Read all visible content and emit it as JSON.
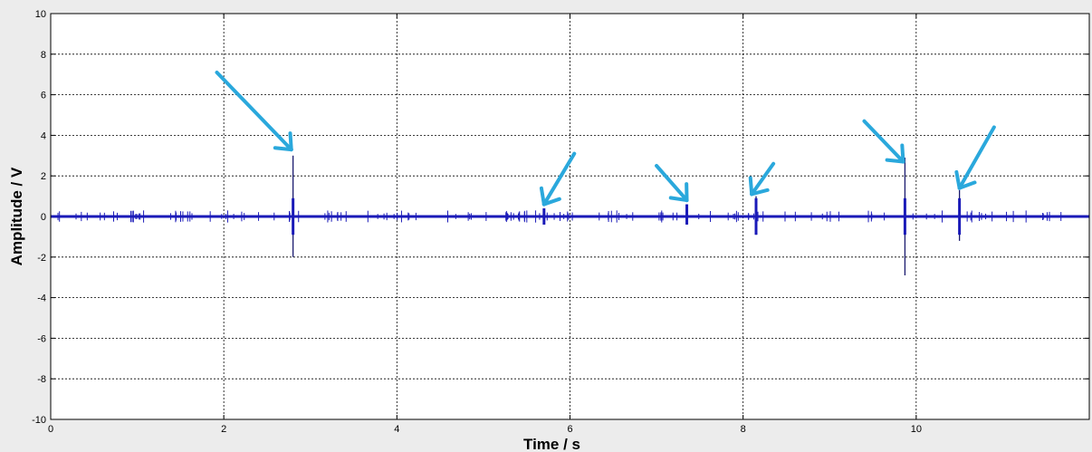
{
  "chart_data": {
    "type": "line",
    "title": "",
    "xlabel": "Time / s",
    "ylabel": "Amplitude / V",
    "xlim": [
      0,
      12
    ],
    "ylim": [
      -10,
      10
    ],
    "xticks": [
      0,
      2,
      4,
      6,
      8,
      10
    ],
    "yticks": [
      -10,
      -8,
      -6,
      -4,
      -2,
      0,
      2,
      4,
      6,
      8,
      10
    ],
    "grid": true,
    "colors": {
      "signal": "#1a1ab8",
      "arrow": "#2aa8dc",
      "grid": "#000000",
      "plot_bg": "#ffffff",
      "figure_bg": "#ececec"
    },
    "baseline": 0,
    "spikes": [
      {
        "x": 2.8,
        "max": 3.0,
        "min": -2.0
      },
      {
        "x": 5.7,
        "max": 0.4,
        "min": -0.4
      },
      {
        "x": 7.35,
        "max": 0.6,
        "min": -0.4
      },
      {
        "x": 8.15,
        "max": 1.0,
        "min": -0.9
      },
      {
        "x": 9.87,
        "max": 2.9,
        "min": -2.9
      },
      {
        "x": 10.5,
        "max": 1.3,
        "min": -1.2
      }
    ],
    "annotations": [
      {
        "type": "arrow",
        "from": [
          1.92,
          7.1
        ],
        "to": [
          2.78,
          3.3
        ]
      },
      {
        "type": "arrow",
        "from": [
          6.05,
          3.1
        ],
        "to": [
          5.7,
          0.6
        ]
      },
      {
        "type": "arrow",
        "from": [
          7.0,
          2.5
        ],
        "to": [
          7.35,
          0.8
        ]
      },
      {
        "type": "arrow",
        "from": [
          8.35,
          2.6
        ],
        "to": [
          8.1,
          1.1
        ]
      },
      {
        "type": "arrow",
        "from": [
          9.4,
          4.7
        ],
        "to": [
          9.85,
          2.7
        ]
      },
      {
        "type": "arrow",
        "from": [
          10.9,
          4.4
        ],
        "to": [
          10.5,
          1.4
        ]
      }
    ]
  }
}
